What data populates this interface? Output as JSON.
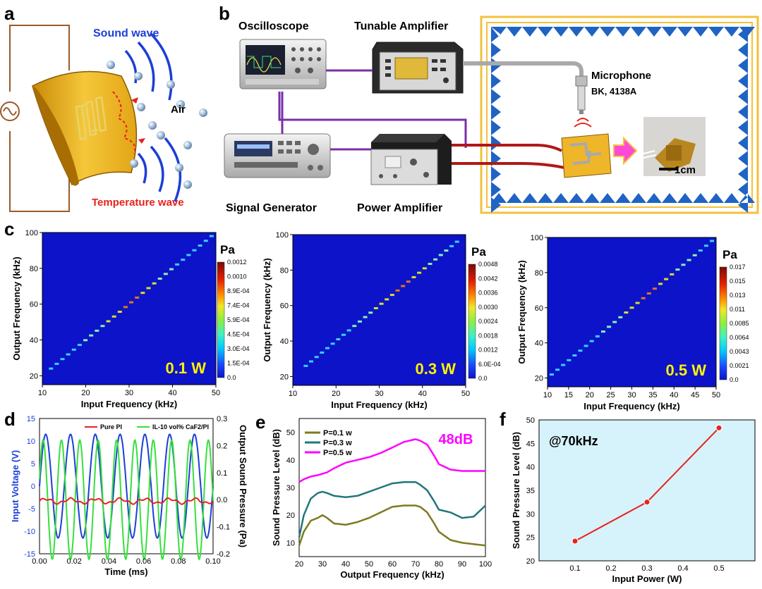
{
  "panel_labels": [
    "a",
    "b",
    "c",
    "d",
    "e",
    "f"
  ],
  "a": {
    "sound_wave": "Sound wave",
    "air": "Air",
    "temperature_wave": "Temperature wave"
  },
  "b": {
    "oscilloscope": "Oscilloscope",
    "tunable_amplifier": "Tunable Amplifier",
    "microphone": "Microphone",
    "mic_model": "BK, 4138A",
    "signal_generator": "Signal Generator",
    "power_amplifier": "Power Amplifier",
    "scale_bar": "1cm"
  },
  "colors": {
    "sound": "#1c3fd6",
    "temperature": "#e8221c",
    "heatmap_bg": "#0c13c8",
    "shaded_bg": "#d6f2fb",
    "yellow_label": "#fff200",
    "magenta": "#ff00ff",
    "olive": "#7f7a1e",
    "teal": "#21777a",
    "red_line": "#e8221c",
    "frame": "#f2c23b",
    "wedge": "#1f63c4"
  },
  "chart_data": [
    {
      "id": "c1",
      "type": "heatmap",
      "power_label": "0.1 W",
      "xlabel": "Input Frequency (kHz)",
      "ylabel": "Output Frequency (kHz)",
      "xlim": [
        10,
        50
      ],
      "ylim": [
        15,
        100
      ],
      "xticks": [
        "10",
        "20",
        "30",
        "40",
        "50"
      ],
      "yticks": [
        "20",
        "40",
        "60",
        "80",
        "100"
      ],
      "diag_x": [
        12,
        49
      ],
      "diag_peak_x": 30,
      "colorbar_title": "Pa",
      "colorbar_labels": [
        "0.0012",
        "0.0010",
        "8.9E-04",
        "7.4E-04",
        "5.9E-04",
        "4.5E-04",
        "3.0E-04",
        "1.5E-04",
        "0.0"
      ]
    },
    {
      "id": "c2",
      "type": "heatmap",
      "power_label": "0.3 W",
      "xlabel": "Input Frequency (kHz)",
      "ylabel": "Output Frequency (kHz)",
      "xlim": [
        10,
        50
      ],
      "ylim": [
        15,
        100
      ],
      "xticks": [
        "10",
        "20",
        "30",
        "40",
        "50"
      ],
      "yticks": [
        "20",
        "40",
        "60",
        "80",
        "100"
      ],
      "diag_x": [
        13,
        48
      ],
      "diag_peak_x": 35,
      "colorbar_title": "Pa",
      "colorbar_labels": [
        "0.0048",
        "0.0042",
        "0.0036",
        "0.0030",
        "0.0024",
        "0.0018",
        "0.0012",
        "6.0E-04",
        "0.0"
      ]
    },
    {
      "id": "c3",
      "type": "heatmap",
      "power_label": "0.5 W",
      "xlabel": "Input Frequency (kHz)",
      "ylabel": "Output Frequency (kHz)",
      "xlim": [
        10,
        50
      ],
      "ylim": [
        15,
        100
      ],
      "xticks": [
        "10",
        "15",
        "20",
        "25",
        "30",
        "35",
        "40",
        "45",
        "50"
      ],
      "yticks": [
        "20",
        "40",
        "60",
        "80",
        "100"
      ],
      "diag_x": [
        11,
        49
      ],
      "diag_peak_x": 34,
      "colorbar_title": "Pa",
      "colorbar_labels": [
        "0.017",
        "0.015",
        "0.013",
        "0.011",
        "0.0085",
        "0.0064",
        "0.0043",
        "0.0021",
        "0.0"
      ]
    },
    {
      "id": "d",
      "type": "line",
      "xlabel": "Time (ms)",
      "ylabel_left": "Input Voltage (V)",
      "ylabel_right": "Output Sound Pressure (Pa)",
      "xlim": [
        0,
        0.1
      ],
      "ylim_left": [
        -15,
        15
      ],
      "ylim_right": [
        -0.2,
        0.3
      ],
      "xticks": [
        "0.00",
        "0.02",
        "0.04",
        "0.06",
        "0.08",
        "0.10"
      ],
      "yticks_left": [
        "15",
        "10",
        "5",
        "0",
        "-5",
        "-10",
        "-15"
      ],
      "yticks_right": [
        "0.3",
        "0.2",
        "0.1",
        "0.0",
        "-0.1",
        "-0.2"
      ],
      "legend": [
        "Pure PI",
        "IL-10 vol% CaF2/PI"
      ],
      "series": [
        {
          "name": "Input Voltage",
          "axis": "left",
          "amplitude": 11.5,
          "frequency_khz": 70
        },
        {
          "name": "IL-10 vol% CaF2/PI",
          "axis": "right",
          "amplitude": 0.22,
          "frequency_khz": 70
        },
        {
          "name": "Pure PI",
          "axis": "right",
          "amplitude": 0.008,
          "offset": -0.005,
          "frequency_khz": 70
        }
      ]
    },
    {
      "id": "e",
      "type": "line",
      "xlabel": "Output Frequency (kHz)",
      "ylabel": "Sound Pressure Level (dB)",
      "xlim": [
        20,
        100
      ],
      "ylim": [
        5,
        55
      ],
      "xticks": [
        "20",
        "30",
        "40",
        "50",
        "60",
        "70",
        "80",
        "90",
        "100"
      ],
      "yticks": [
        "10",
        "20",
        "30",
        "40",
        "50"
      ],
      "annotation": "48dB",
      "x": [
        20,
        22,
        25,
        28,
        30,
        32,
        35,
        40,
        45,
        50,
        55,
        60,
        65,
        70,
        72,
        75,
        78,
        80,
        85,
        90,
        95,
        100
      ],
      "series": [
        {
          "name": "P=0.1 w",
          "values": [
            9,
            14,
            18,
            19,
            20,
            19,
            17,
            16.5,
            17.5,
            19,
            21,
            23,
            23.5,
            23.5,
            23,
            21,
            17,
            14,
            11,
            10,
            9.5,
            9
          ]
        },
        {
          "name": "P=0.3 w",
          "values": [
            12,
            20,
            26,
            28,
            28.5,
            28,
            27,
            26.5,
            27,
            28.5,
            30,
            31.5,
            32,
            32,
            31,
            29,
            25,
            22,
            21,
            19,
            19.5,
            23.5
          ]
        },
        {
          "name": "P=0.5 w",
          "values": [
            32,
            33,
            34,
            34.5,
            35,
            35.5,
            37,
            39,
            40,
            41,
            42.5,
            44.5,
            46.5,
            47.5,
            47,
            45.5,
            41.5,
            38.5,
            36.5,
            36,
            36,
            36
          ]
        }
      ]
    },
    {
      "id": "f",
      "type": "scatter",
      "annotation": "@70kHz",
      "xlabel": "Input Power (W)",
      "ylabel": "Sound Pressure Level (dB)",
      "xlim": [
        0,
        0.6
      ],
      "ylim": [
        20,
        50
      ],
      "xticks": [
        "0.1",
        "0.2",
        "0.3",
        "0.4",
        "0.5"
      ],
      "yticks": [
        "20",
        "25",
        "30",
        "35",
        "40",
        "45",
        "50"
      ],
      "x": [
        0.1,
        0.3,
        0.5
      ],
      "values": [
        24.2,
        32.5,
        48.3
      ]
    }
  ]
}
